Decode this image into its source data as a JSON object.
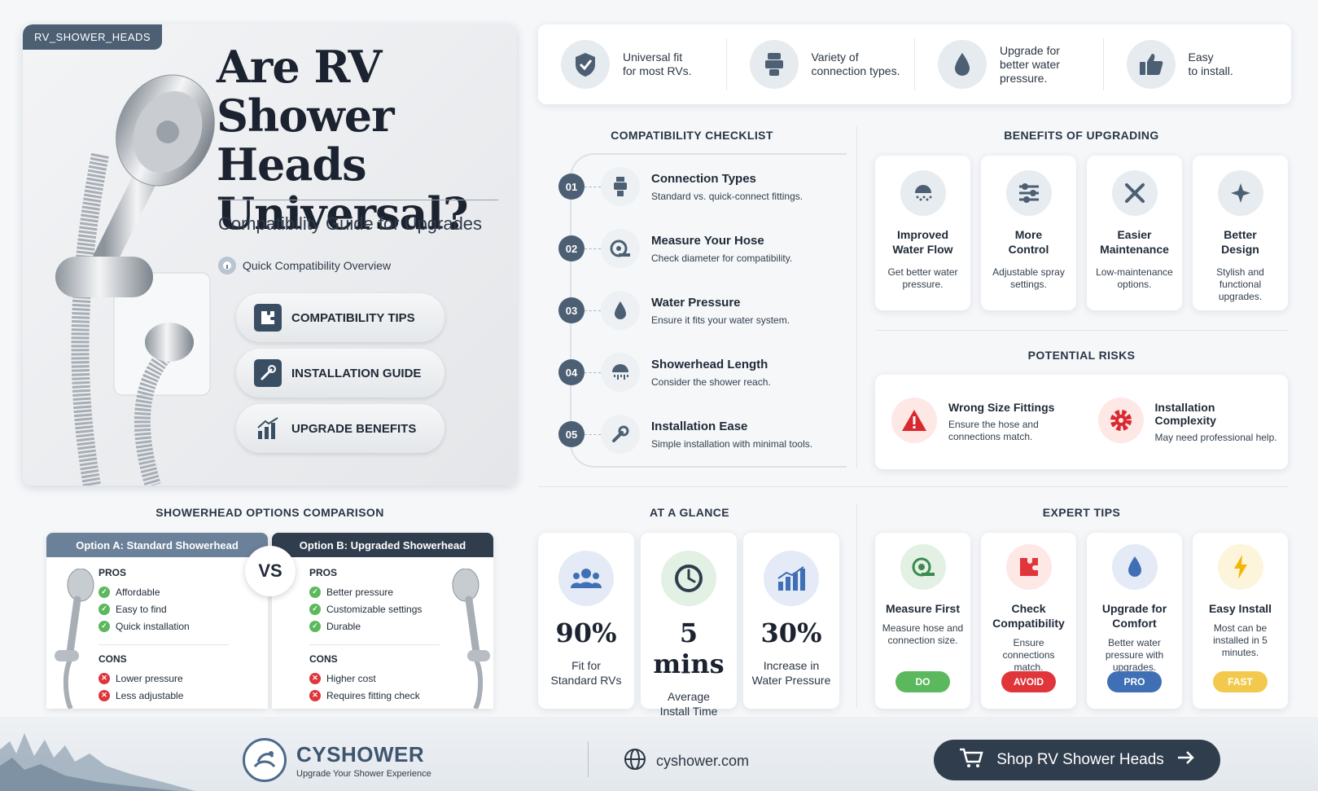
{
  "hero": {
    "tag": "RV_SHOWER_HEADS",
    "title": "Are RV Shower Heads Universal?",
    "subtitle": "Compatibility Guide for Upgrades",
    "overview": "Quick Compatibility Overview",
    "buttons": [
      {
        "label": "COMPATIBILITY TIPS",
        "icon": "puzzle-icon"
      },
      {
        "label": "INSTALLATION GUIDE",
        "icon": "tools-icon"
      },
      {
        "label": "UPGRADE BENEFITS",
        "icon": "chart-up-icon"
      }
    ]
  },
  "features": [
    {
      "text1": "Universal fit",
      "text2": "for most RVs.",
      "icon": "shield-check-icon"
    },
    {
      "text1": "Variety of",
      "text2": "connection types.",
      "icon": "connector-icon"
    },
    {
      "text1": "Upgrade for",
      "text2": "better water",
      "text3": "pressure.",
      "icon": "water-drop-icon"
    },
    {
      "text1": "Easy",
      "text2": "to install.",
      "icon": "thumbs-up-icon"
    }
  ],
  "checklist": {
    "title": "COMPATIBILITY CHECKLIST",
    "items": [
      {
        "num": "01",
        "title": "Connection Types",
        "desc": "Standard vs. quick-connect fittings.",
        "icon": "fitting-icon"
      },
      {
        "num": "02",
        "title": "Measure Your Hose",
        "desc": "Check diameter for compatibility.",
        "icon": "tape-measure-icon"
      },
      {
        "num": "03",
        "title": "Water Pressure",
        "desc": "Ensure it fits your water system.",
        "icon": "water-drop-icon"
      },
      {
        "num": "04",
        "title": "Showerhead Length",
        "desc": "Consider the shower reach.",
        "icon": "showerhead-icon"
      },
      {
        "num": "05",
        "title": "Installation Ease",
        "desc": "Simple installation with minimal tools.",
        "icon": "wrench-icon"
      }
    ]
  },
  "benefits": {
    "title": "BENEFITS OF UPGRADING",
    "items": [
      {
        "t1": "Improved",
        "t2": "Water Flow",
        "d": "Get better water pressure.",
        "icon": "spray-icon"
      },
      {
        "t1": "More",
        "t2": "Control",
        "d": "Adjustable spray settings.",
        "icon": "sliders-icon"
      },
      {
        "t1": "Easier",
        "t2": "Maintenance",
        "d": "Low-maintenance options.",
        "icon": "tools-icon"
      },
      {
        "t1": "Better",
        "t2": "Design",
        "d": "Stylish and functional upgrades.",
        "icon": "sparkle-icon"
      }
    ]
  },
  "risks": {
    "title": "POTENTIAL RISKS",
    "items": [
      {
        "title": "Wrong Size Fittings",
        "desc": "Ensure the hose and connections match.",
        "icon": "warning-icon"
      },
      {
        "title": "Installation Complexity",
        "desc": "May need professional help.",
        "icon": "gear-icon"
      }
    ]
  },
  "comparison": {
    "title": "SHOWERHEAD OPTIONS COMPARISON",
    "vs": "VS",
    "pros_label": "PROS",
    "cons_label": "CONS",
    "option_a": {
      "header": "Option A: Standard Showerhead",
      "pros": [
        "Affordable",
        "Easy to find",
        "Quick installation"
      ],
      "cons": [
        "Lower pressure",
        "Less adjustable"
      ]
    },
    "option_b": {
      "header": "Option B: Upgraded Showerhead",
      "pros": [
        "Better pressure",
        "Customizable settings",
        "Durable"
      ],
      "cons": [
        "Higher cost",
        "Requires fitting check"
      ]
    }
  },
  "glance": {
    "title": "AT A GLANCE",
    "items": [
      {
        "value": "90%",
        "l1": "Fit for",
        "l2": "Standard RVs",
        "icon": "users-icon"
      },
      {
        "value": "5 mins",
        "l1": "Average",
        "l2": "Install Time",
        "icon": "clock-icon"
      },
      {
        "value": "30%",
        "l1": "Increase in",
        "l2": "Water Pressure",
        "icon": "bar-chart-icon"
      }
    ]
  },
  "tips": {
    "title": "EXPERT TIPS",
    "items": [
      {
        "t1": "Measure First",
        "t2": "",
        "d": "Measure hose and connection size.",
        "pill": "DO",
        "icon": "tape-measure-icon"
      },
      {
        "t1": "Check",
        "t2": "Compatibility",
        "d": "Ensure connections match.",
        "pill": "AVOID",
        "icon": "puzzle-icon"
      },
      {
        "t1": "Upgrade for",
        "t2": "Comfort",
        "d": "Better water pressure with upgrades.",
        "pill": "PRO",
        "icon": "water-drop-icon"
      },
      {
        "t1": "Easy Install",
        "t2": "",
        "d": "Most can be installed in 5 minutes.",
        "pill": "FAST",
        "icon": "lightning-icon"
      }
    ]
  },
  "footer": {
    "brand": "CYSHOWER",
    "tagline": "Upgrade Your Shower Experience",
    "site": "cyshower.com",
    "shop": "Shop RV Shower Heads"
  },
  "colors": {
    "accent": "#4c5f73",
    "dark": "#2f3d4d",
    "green": "#5cb85c",
    "red": "#e0353a",
    "blue": "#3f6fb5",
    "yellow": "#f2c94c"
  }
}
